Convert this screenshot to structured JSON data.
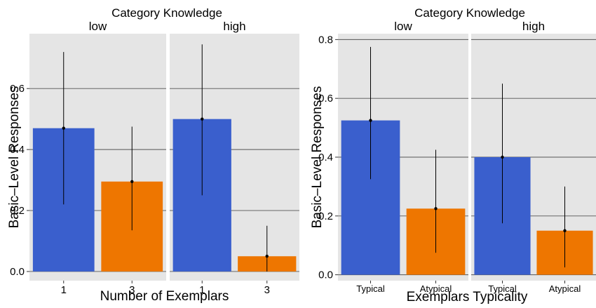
{
  "chart_data": [
    {
      "type": "bar",
      "facet_title": "Category Knowledge",
      "facets": [
        "low",
        "high"
      ],
      "categories": [
        "1",
        "3"
      ],
      "xlabel": "Number of Exemplars",
      "ylabel": "Basic–Level Responses",
      "ylim": [
        -0.03,
        0.78
      ],
      "yticks": [
        0.0,
        0.2,
        0.4,
        0.6
      ],
      "ytick_labels": [
        "0.0",
        "0.2",
        "0.4",
        "0.6"
      ],
      "panels": [
        {
          "facet": "low",
          "values": [
            0.47,
            0.295
          ],
          "err_low": [
            0.22,
            0.135
          ],
          "err_high": [
            0.72,
            0.475
          ]
        },
        {
          "facet": "high",
          "values": [
            0.5,
            0.05
          ],
          "err_low": [
            0.25,
            0.0
          ],
          "err_high": [
            0.745,
            0.15
          ]
        }
      ],
      "colors": [
        "#3a5fcd",
        "#ee7600"
      ],
      "grid": true,
      "background": "#e5e5e5"
    },
    {
      "type": "bar",
      "facet_title": "Category Knowledge",
      "facets": [
        "low",
        "high"
      ],
      "categories": [
        "Typical",
        "Atypical"
      ],
      "xlabel": "Exemplars Typicality",
      "ylabel": "Basic–Level Responses",
      "ylim": [
        -0.02,
        0.82
      ],
      "yticks": [
        0.0,
        0.2,
        0.4,
        0.6,
        0.8
      ],
      "ytick_labels": [
        "0.0",
        "0.2",
        "0.4",
        "0.6",
        "0.8"
      ],
      "panels": [
        {
          "facet": "low",
          "values": [
            0.525,
            0.225
          ],
          "err_low": [
            0.325,
            0.075
          ],
          "err_high": [
            0.775,
            0.425
          ]
        },
        {
          "facet": "high",
          "values": [
            0.4,
            0.15
          ],
          "err_low": [
            0.175,
            0.025
          ],
          "err_high": [
            0.65,
            0.3
          ]
        }
      ],
      "colors": [
        "#3a5fcd",
        "#ee7600"
      ],
      "grid": true,
      "background": "#e5e5e5"
    }
  ]
}
